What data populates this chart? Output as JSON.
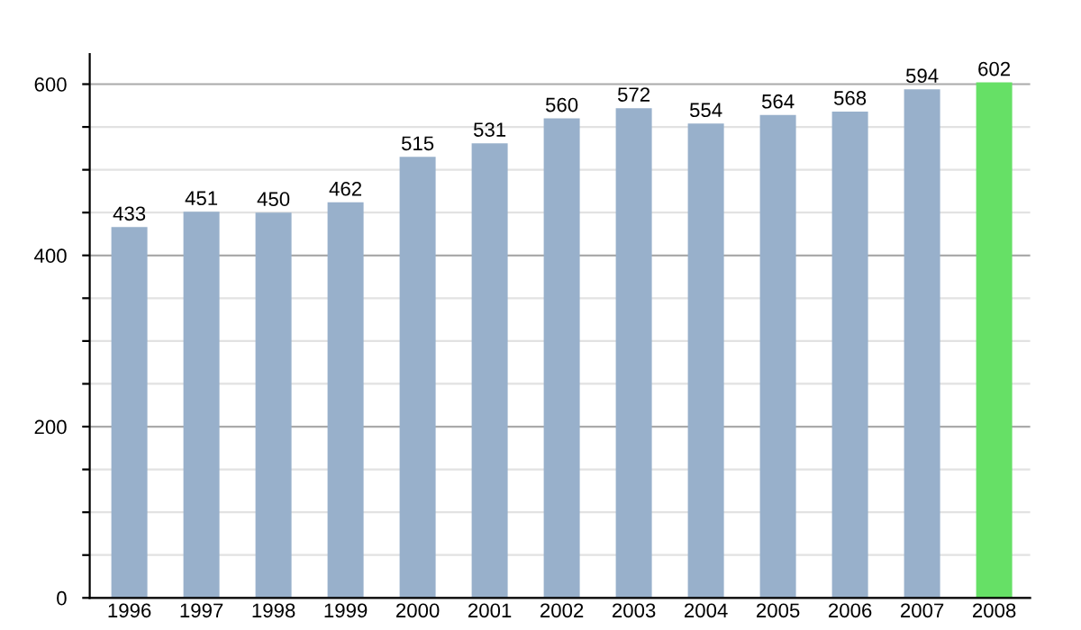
{
  "chart_data": {
    "type": "bar",
    "categories": [
      "1996",
      "1997",
      "1998",
      "1999",
      "2000",
      "2001",
      "2002",
      "2003",
      "2004",
      "2005",
      "2006",
      "2007",
      "2008"
    ],
    "values": [
      433,
      451,
      450,
      462,
      515,
      531,
      560,
      572,
      554,
      564,
      568,
      594,
      602
    ],
    "colors": [
      "#98b0cb",
      "#98b0cb",
      "#98b0cb",
      "#98b0cb",
      "#98b0cb",
      "#98b0cb",
      "#98b0cb",
      "#98b0cb",
      "#98b0cb",
      "#98b0cb",
      "#98b0cb",
      "#98b0cb",
      "#66e066"
    ],
    "ylim": [
      0,
      635
    ],
    "yticks": [
      0,
      {
        "value": 50,
        "label": null
      },
      {
        "value": 100,
        "label": null
      },
      {
        "value": 150,
        "label": null
      },
      200,
      {
        "value": 250,
        "label": null
      },
      {
        "value": 300,
        "label": null
      },
      {
        "value": 350,
        "label": null
      },
      400,
      {
        "value": 450,
        "label": null
      },
      {
        "value": 500,
        "label": null
      },
      {
        "value": 550,
        "label": null
      },
      600
    ],
    "grid": "y",
    "data_labels": true
  }
}
